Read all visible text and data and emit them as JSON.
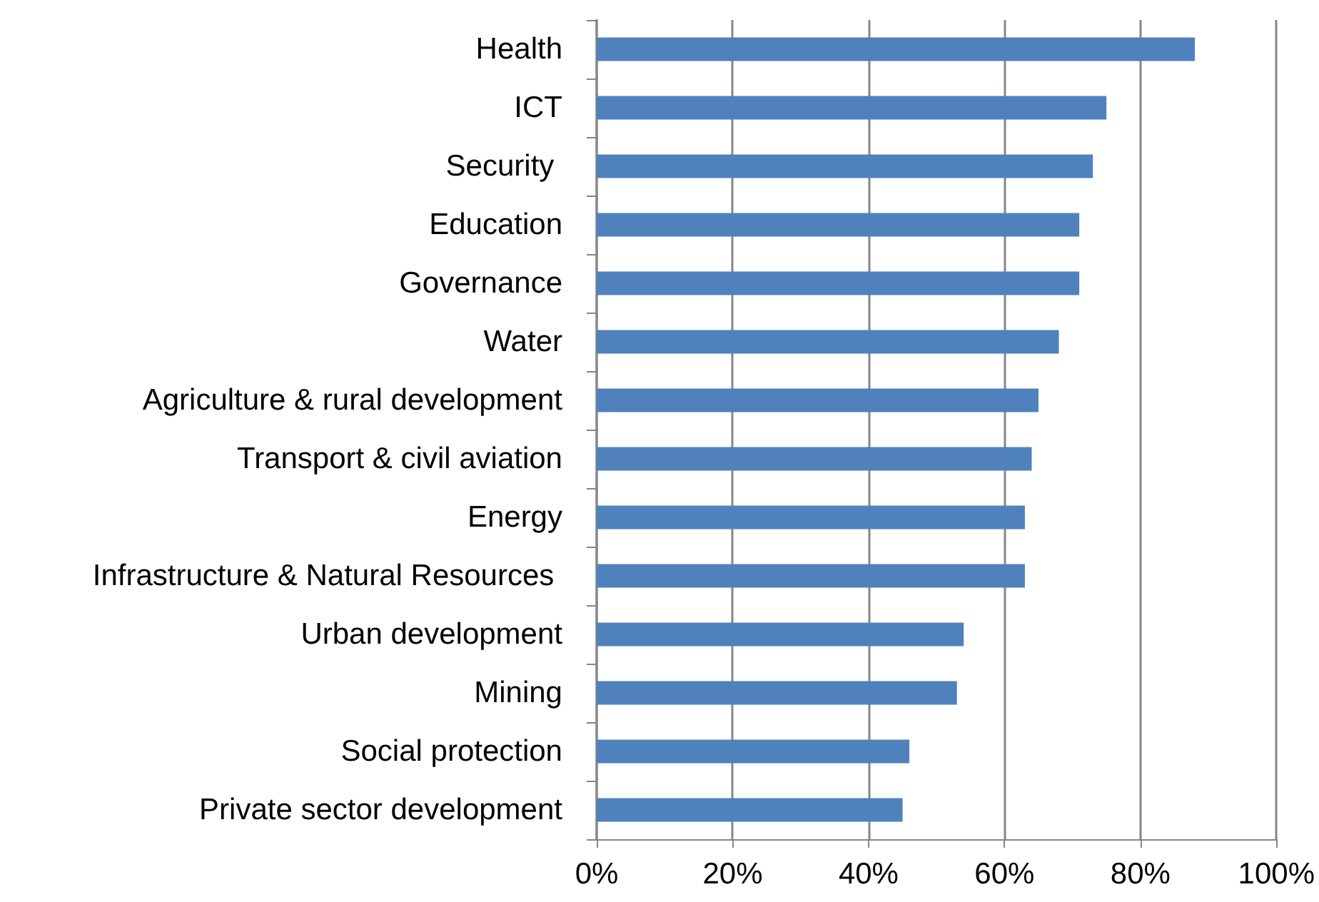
{
  "chart_data": {
    "type": "bar",
    "orientation": "horizontal",
    "categories": [
      "Health",
      "ICT",
      "Security ",
      "Education",
      "Governance",
      "Water",
      "Agriculture & rural development",
      "Transport & civil aviation",
      "Energy",
      "Infrastructure & Natural Resources ",
      "Urban development",
      "Mining",
      "Social protection",
      "Private sector development"
    ],
    "values": [
      88,
      75,
      73,
      71,
      71,
      68,
      65,
      64,
      63,
      63,
      54,
      53,
      46,
      45
    ],
    "color": "#4f81bd",
    "xlim": [
      0,
      100
    ],
    "xticks": [
      {
        "value": 0,
        "label": "0%"
      },
      {
        "value": 20,
        "label": "20%"
      },
      {
        "value": 40,
        "label": "40%"
      },
      {
        "value": 60,
        "label": "60%"
      },
      {
        "value": 80,
        "label": "80%"
      },
      {
        "value": 100,
        "label": "100%"
      }
    ],
    "grid": "x"
  }
}
